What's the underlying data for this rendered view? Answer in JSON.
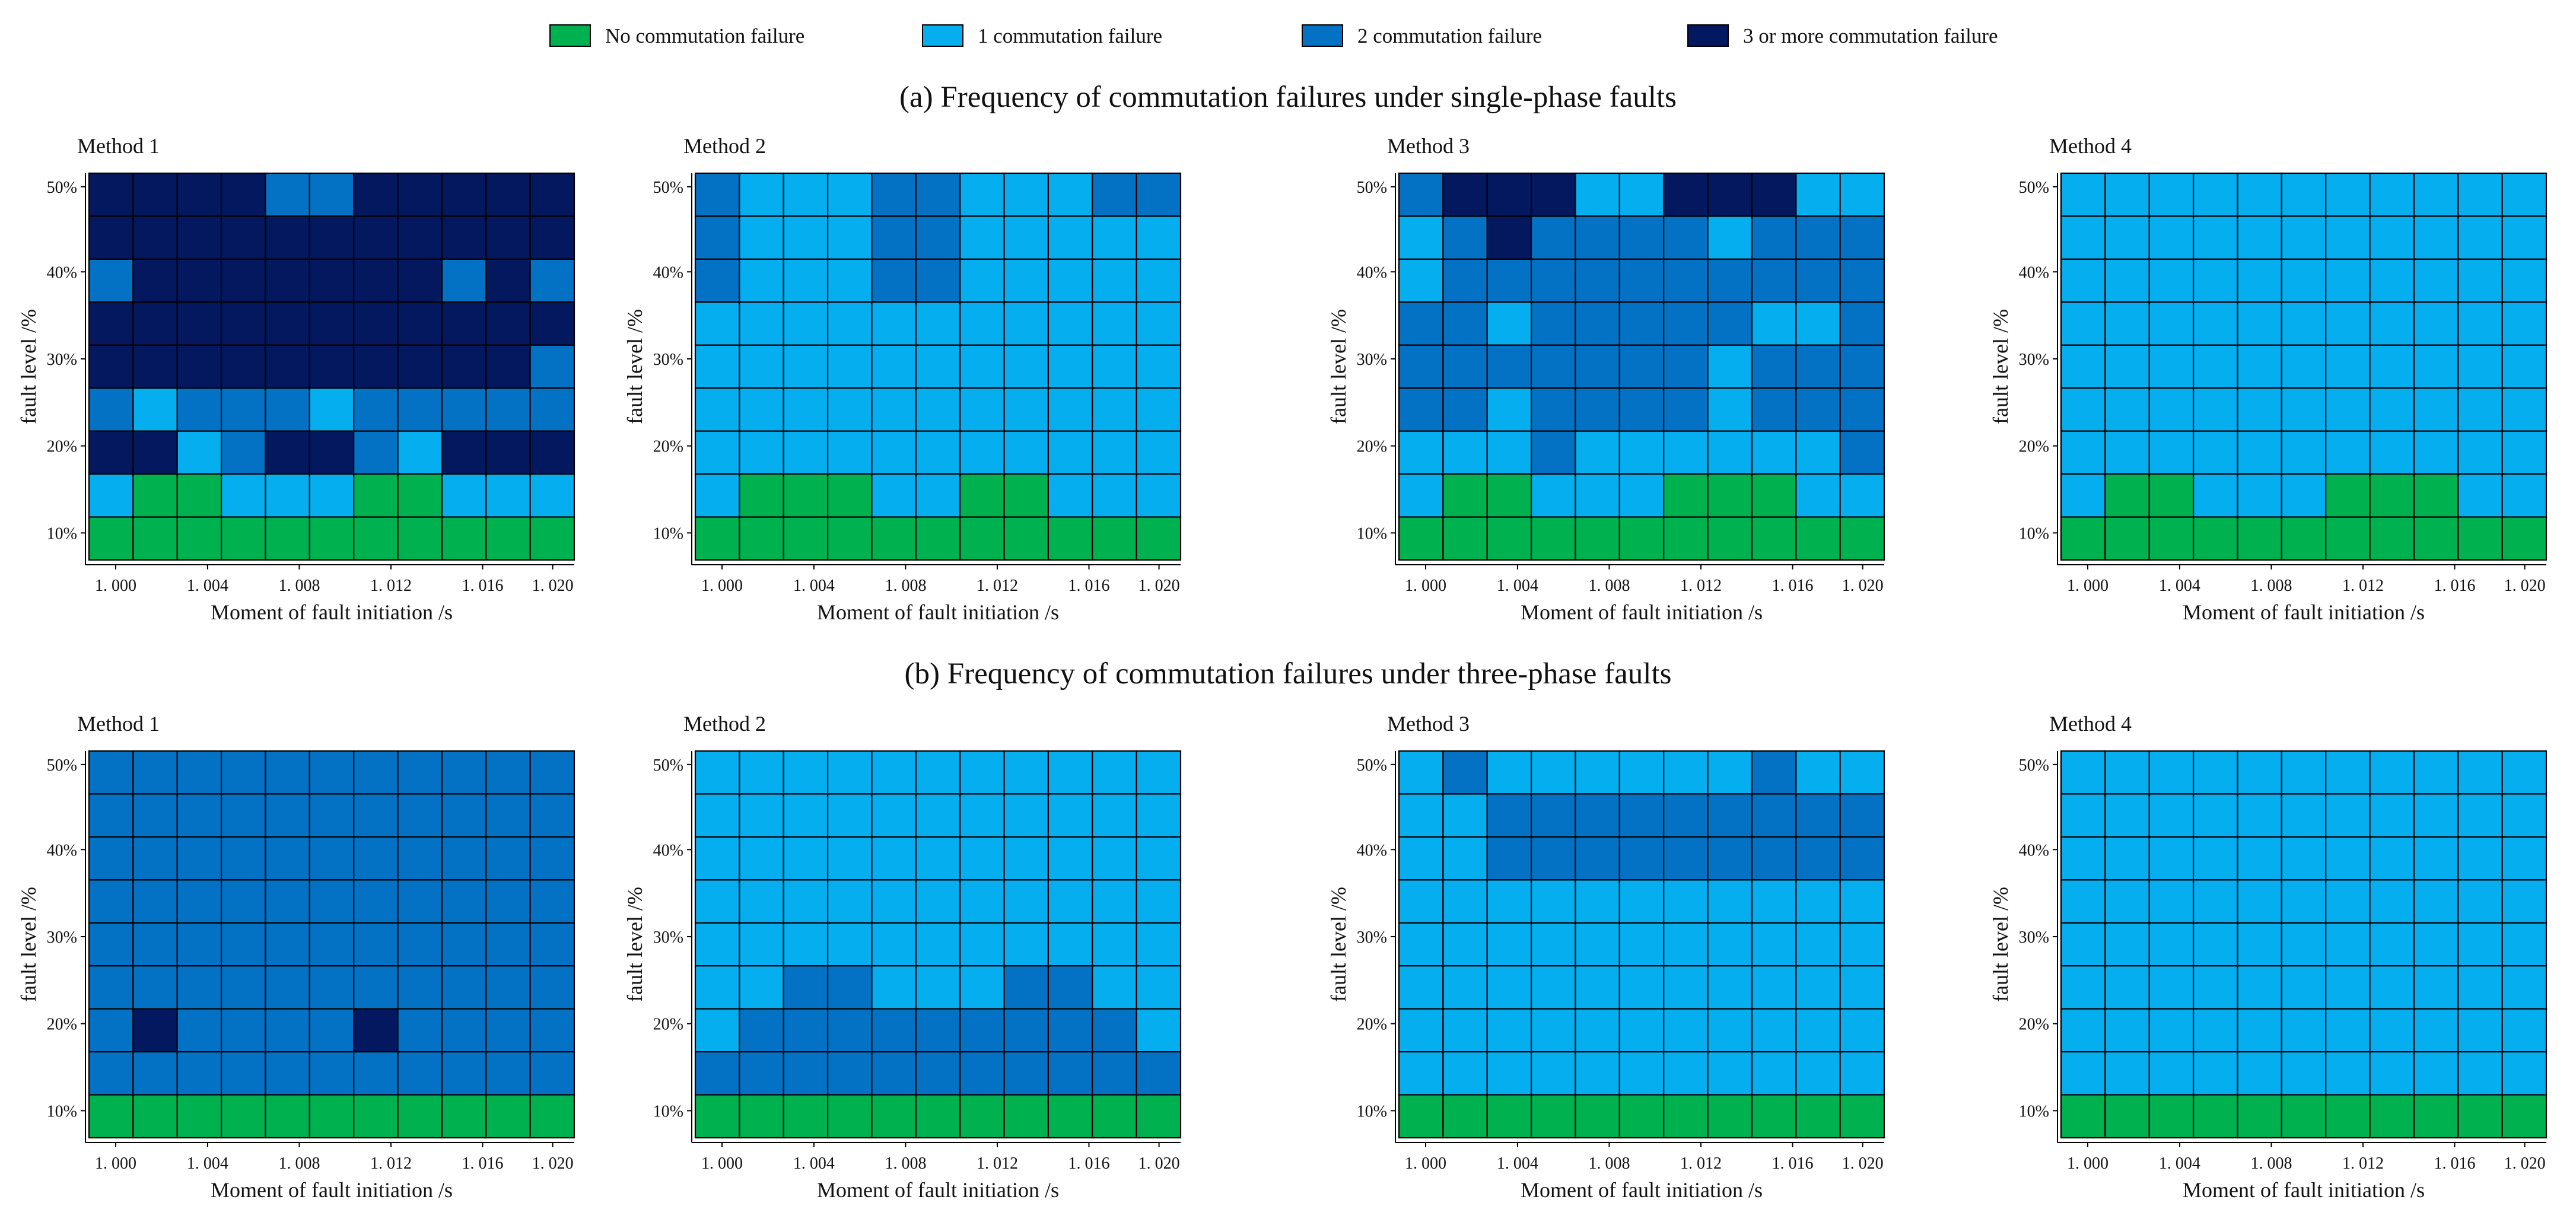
{
  "colors": {
    "0": "#00B14F",
    "1": "#04AEEF",
    "2": "#0472C4",
    "3": "#03185E"
  },
  "legend": [
    {
      "label": "No commutation failure",
      "level": 0
    },
    {
      "label": "1 commutation failure",
      "level": 1
    },
    {
      "label": "2 commutation failure",
      "level": 2
    },
    {
      "label": "3 or more commutation failure",
      "level": 3
    }
  ],
  "sections": [
    {
      "title": "(a) Frequency of commutation failures under single-phase faults"
    },
    {
      "title": "(b) Frequency of commutation failures under three-phase faults"
    }
  ],
  "chart_data": [
    {
      "type": "heatmap",
      "section": "a",
      "title": "Method 1",
      "xlabel": "Moment of fault initiation /s",
      "ylabel": "fault level /%",
      "xticks": [
        "1. 000",
        "1. 004",
        "1. 008",
        "1. 012",
        "1. 016",
        "1. 020"
      ],
      "yticks": [
        "10%",
        "20%",
        "30%",
        "40%",
        "50%"
      ],
      "grid_rows_top_to_bottom": [
        [
          3,
          3,
          3,
          3,
          2,
          2,
          3,
          3,
          3,
          3,
          3
        ],
        [
          3,
          3,
          3,
          3,
          3,
          3,
          3,
          3,
          3,
          3,
          3
        ],
        [
          2,
          3,
          3,
          3,
          3,
          3,
          3,
          3,
          2,
          3,
          2
        ],
        [
          3,
          3,
          3,
          3,
          3,
          3,
          3,
          3,
          3,
          3,
          3
        ],
        [
          3,
          3,
          3,
          3,
          3,
          3,
          3,
          3,
          3,
          3,
          2
        ],
        [
          2,
          1,
          2,
          2,
          2,
          1,
          2,
          2,
          2,
          2,
          2
        ],
        [
          3,
          3,
          1,
          2,
          3,
          3,
          2,
          1,
          3,
          3,
          3
        ],
        [
          1,
          0,
          0,
          1,
          1,
          1,
          0,
          0,
          1,
          1,
          1
        ],
        [
          0,
          0,
          0,
          0,
          0,
          0,
          0,
          0,
          0,
          0,
          0
        ]
      ]
    },
    {
      "type": "heatmap",
      "section": "a",
      "title": "Method 2",
      "xlabel": "Moment of fault initiation /s",
      "ylabel": "fault level /%",
      "xticks": [
        "1. 000",
        "1. 004",
        "1. 008",
        "1. 012",
        "1. 016",
        "1. 020"
      ],
      "yticks": [
        "10%",
        "20%",
        "30%",
        "40%",
        "50%"
      ],
      "grid_rows_top_to_bottom": [
        [
          2,
          1,
          1,
          1,
          2,
          2,
          1,
          1,
          1,
          2,
          2
        ],
        [
          2,
          1,
          1,
          1,
          2,
          2,
          1,
          1,
          1,
          1,
          1
        ],
        [
          2,
          1,
          1,
          1,
          2,
          2,
          1,
          1,
          1,
          1,
          1
        ],
        [
          1,
          1,
          1,
          1,
          1,
          1,
          1,
          1,
          1,
          1,
          1
        ],
        [
          1,
          1,
          1,
          1,
          1,
          1,
          1,
          1,
          1,
          1,
          1
        ],
        [
          1,
          1,
          1,
          1,
          1,
          1,
          1,
          1,
          1,
          1,
          1
        ],
        [
          1,
          1,
          1,
          1,
          1,
          1,
          1,
          1,
          1,
          1,
          1
        ],
        [
          1,
          0,
          0,
          0,
          1,
          1,
          0,
          0,
          1,
          1,
          1
        ],
        [
          0,
          0,
          0,
          0,
          0,
          0,
          0,
          0,
          0,
          0,
          0
        ]
      ]
    },
    {
      "type": "heatmap",
      "section": "a",
      "title": "Method 3",
      "xlabel": "Moment of fault initiation /s",
      "ylabel": "fault level /%",
      "xticks": [
        "1. 000",
        "1. 004",
        "1. 008",
        "1. 012",
        "1. 016",
        "1. 020"
      ],
      "yticks": [
        "10%",
        "20%",
        "30%",
        "40%",
        "50%"
      ],
      "grid_rows_top_to_bottom": [
        [
          2,
          3,
          3,
          3,
          1,
          1,
          3,
          3,
          3,
          1,
          1
        ],
        [
          1,
          2,
          3,
          2,
          2,
          2,
          2,
          1,
          2,
          2,
          2
        ],
        [
          1,
          2,
          2,
          2,
          2,
          2,
          2,
          2,
          2,
          2,
          2
        ],
        [
          2,
          2,
          1,
          2,
          2,
          2,
          2,
          2,
          1,
          1,
          2
        ],
        [
          2,
          2,
          2,
          2,
          2,
          2,
          2,
          1,
          2,
          2,
          2
        ],
        [
          2,
          2,
          1,
          2,
          2,
          2,
          2,
          1,
          2,
          2,
          2
        ],
        [
          1,
          1,
          1,
          2,
          1,
          1,
          1,
          1,
          1,
          1,
          2
        ],
        [
          1,
          0,
          0,
          1,
          1,
          1,
          0,
          0,
          0,
          1,
          1
        ],
        [
          0,
          0,
          0,
          0,
          0,
          0,
          0,
          0,
          0,
          0,
          0
        ]
      ]
    },
    {
      "type": "heatmap",
      "section": "a",
      "title": "Method 4",
      "xlabel": "Moment of fault initiation /s",
      "ylabel": "fault level /%",
      "xticks": [
        "1. 000",
        "1. 004",
        "1. 008",
        "1. 012",
        "1. 016",
        "1. 020"
      ],
      "yticks": [
        "10%",
        "20%",
        "30%",
        "40%",
        "50%"
      ],
      "grid_rows_top_to_bottom": [
        [
          1,
          1,
          1,
          1,
          1,
          1,
          1,
          1,
          1,
          1,
          1
        ],
        [
          1,
          1,
          1,
          1,
          1,
          1,
          1,
          1,
          1,
          1,
          1
        ],
        [
          1,
          1,
          1,
          1,
          1,
          1,
          1,
          1,
          1,
          1,
          1
        ],
        [
          1,
          1,
          1,
          1,
          1,
          1,
          1,
          1,
          1,
          1,
          1
        ],
        [
          1,
          1,
          1,
          1,
          1,
          1,
          1,
          1,
          1,
          1,
          1
        ],
        [
          1,
          1,
          1,
          1,
          1,
          1,
          1,
          1,
          1,
          1,
          1
        ],
        [
          1,
          1,
          1,
          1,
          1,
          1,
          1,
          1,
          1,
          1,
          1
        ],
        [
          1,
          0,
          0,
          1,
          1,
          1,
          0,
          0,
          0,
          1,
          1
        ],
        [
          0,
          0,
          0,
          0,
          0,
          0,
          0,
          0,
          0,
          0,
          0
        ]
      ]
    },
    {
      "type": "heatmap",
      "section": "b",
      "title": "Method 1",
      "xlabel": "Moment of fault initiation /s",
      "ylabel": "fault level /%",
      "xticks": [
        "1. 000",
        "1. 004",
        "1. 008",
        "1. 012",
        "1. 016",
        "1. 020"
      ],
      "yticks": [
        "10%",
        "20%",
        "30%",
        "40%",
        "50%"
      ],
      "grid_rows_top_to_bottom": [
        [
          2,
          2,
          2,
          2,
          2,
          2,
          2,
          2,
          2,
          2,
          2
        ],
        [
          2,
          2,
          2,
          2,
          2,
          2,
          2,
          2,
          2,
          2,
          2
        ],
        [
          2,
          2,
          2,
          2,
          2,
          2,
          2,
          2,
          2,
          2,
          2
        ],
        [
          2,
          2,
          2,
          2,
          2,
          2,
          2,
          2,
          2,
          2,
          2
        ],
        [
          2,
          2,
          2,
          2,
          2,
          2,
          2,
          2,
          2,
          2,
          2
        ],
        [
          2,
          2,
          2,
          2,
          2,
          2,
          2,
          2,
          2,
          2,
          2
        ],
        [
          2,
          3,
          2,
          2,
          2,
          2,
          3,
          2,
          2,
          2,
          2
        ],
        [
          2,
          2,
          2,
          2,
          2,
          2,
          2,
          2,
          2,
          2,
          2
        ],
        [
          0,
          0,
          0,
          0,
          0,
          0,
          0,
          0,
          0,
          0,
          0
        ]
      ]
    },
    {
      "type": "heatmap",
      "section": "b",
      "title": "Method 2",
      "xlabel": "Moment of fault initiation /s",
      "ylabel": "fault level /%",
      "xticks": [
        "1. 000",
        "1. 004",
        "1. 008",
        "1. 012",
        "1. 016",
        "1. 020"
      ],
      "yticks": [
        "10%",
        "20%",
        "30%",
        "40%",
        "50%"
      ],
      "grid_rows_top_to_bottom": [
        [
          1,
          1,
          1,
          1,
          1,
          1,
          1,
          1,
          1,
          1,
          1
        ],
        [
          1,
          1,
          1,
          1,
          1,
          1,
          1,
          1,
          1,
          1,
          1
        ],
        [
          1,
          1,
          1,
          1,
          1,
          1,
          1,
          1,
          1,
          1,
          1
        ],
        [
          1,
          1,
          1,
          1,
          1,
          1,
          1,
          1,
          1,
          1,
          1
        ],
        [
          1,
          1,
          1,
          1,
          1,
          1,
          1,
          1,
          1,
          1,
          1
        ],
        [
          1,
          1,
          2,
          2,
          1,
          1,
          1,
          2,
          2,
          1,
          1
        ],
        [
          1,
          2,
          2,
          2,
          2,
          2,
          2,
          2,
          2,
          2,
          1
        ],
        [
          2,
          2,
          2,
          2,
          2,
          2,
          2,
          2,
          2,
          2,
          2
        ],
        [
          0,
          0,
          0,
          0,
          0,
          0,
          0,
          0,
          0,
          0,
          0
        ]
      ]
    },
    {
      "type": "heatmap",
      "section": "b",
      "title": "Method 3",
      "xlabel": "Moment of fault initiation /s",
      "ylabel": "fault level /%",
      "xticks": [
        "1. 000",
        "1. 004",
        "1. 008",
        "1. 012",
        "1. 016",
        "1. 020"
      ],
      "yticks": [
        "10%",
        "20%",
        "30%",
        "40%",
        "50%"
      ],
      "grid_rows_top_to_bottom": [
        [
          1,
          2,
          1,
          1,
          1,
          1,
          1,
          1,
          2,
          1,
          1
        ],
        [
          1,
          1,
          2,
          2,
          2,
          2,
          2,
          2,
          2,
          2,
          2
        ],
        [
          1,
          1,
          2,
          2,
          2,
          2,
          2,
          2,
          2,
          2,
          2
        ],
        [
          1,
          1,
          1,
          1,
          1,
          1,
          1,
          1,
          1,
          1,
          1
        ],
        [
          1,
          1,
          1,
          1,
          1,
          1,
          1,
          1,
          1,
          1,
          1
        ],
        [
          1,
          1,
          1,
          1,
          1,
          1,
          1,
          1,
          1,
          1,
          1
        ],
        [
          1,
          1,
          1,
          1,
          1,
          1,
          1,
          1,
          1,
          1,
          1
        ],
        [
          1,
          1,
          1,
          1,
          1,
          1,
          1,
          1,
          1,
          1,
          1
        ],
        [
          0,
          0,
          0,
          0,
          0,
          0,
          0,
          0,
          0,
          0,
          0
        ]
      ]
    },
    {
      "type": "heatmap",
      "section": "b",
      "title": "Method 4",
      "xlabel": "Moment of fault initiation /s",
      "ylabel": "fault level /%",
      "xticks": [
        "1. 000",
        "1. 004",
        "1. 008",
        "1. 012",
        "1. 016",
        "1. 020"
      ],
      "yticks": [
        "10%",
        "20%",
        "30%",
        "40%",
        "50%"
      ],
      "grid_rows_top_to_bottom": [
        [
          1,
          1,
          1,
          1,
          1,
          1,
          1,
          1,
          1,
          1,
          1
        ],
        [
          1,
          1,
          1,
          1,
          1,
          1,
          1,
          1,
          1,
          1,
          1
        ],
        [
          1,
          1,
          1,
          1,
          1,
          1,
          1,
          1,
          1,
          1,
          1
        ],
        [
          1,
          1,
          1,
          1,
          1,
          1,
          1,
          1,
          1,
          1,
          1
        ],
        [
          1,
          1,
          1,
          1,
          1,
          1,
          1,
          1,
          1,
          1,
          1
        ],
        [
          1,
          1,
          1,
          1,
          1,
          1,
          1,
          1,
          1,
          1,
          1
        ],
        [
          1,
          1,
          1,
          1,
          1,
          1,
          1,
          1,
          1,
          1,
          1
        ],
        [
          1,
          1,
          1,
          1,
          1,
          1,
          1,
          1,
          1,
          1,
          1
        ],
        [
          0,
          0,
          0,
          0,
          0,
          0,
          0,
          0,
          0,
          0,
          0
        ]
      ]
    }
  ]
}
